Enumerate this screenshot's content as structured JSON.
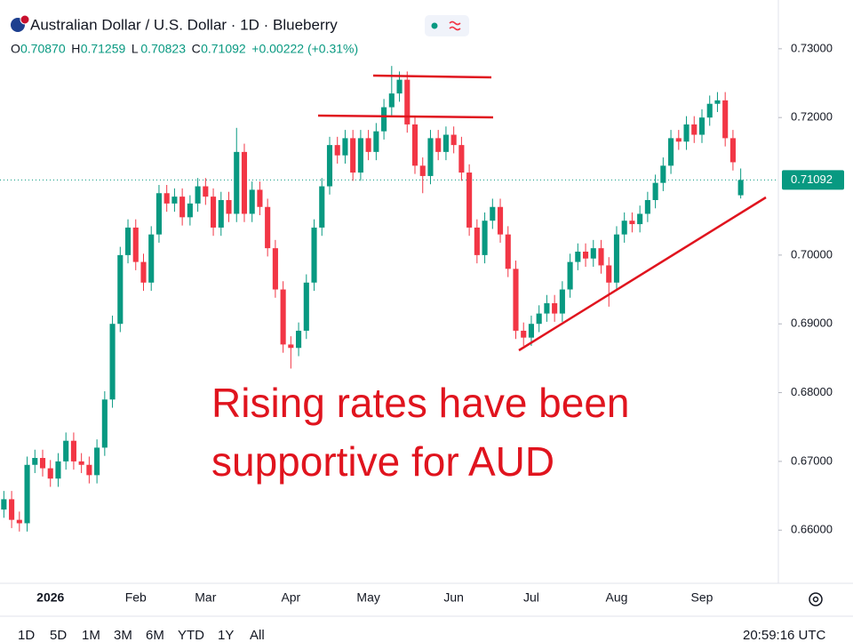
{
  "header": {
    "title": "Australian Dollar / U.S. Dollar · 1D · Blueberry",
    "ohlc": [
      {
        "label": "O",
        "value": "0.70870"
      },
      {
        "label": "H",
        "value": "0.71259"
      },
      {
        "label": "L",
        "value": "0.70823"
      },
      {
        "label": "C",
        "value": "0.71092"
      }
    ],
    "change": "+0.00222 (+0.31%)"
  },
  "chart_data": {
    "type": "candlestick",
    "annotation": [
      "Rising rates have been",
      "supportive for AUD"
    ],
    "up_color": "#089981",
    "down_color": "#f23645",
    "annotation_color": "#e0141e",
    "categories": [
      null,
      null,
      null,
      null,
      null,
      null,
      "2026",
      null,
      null,
      null,
      null,
      null,
      null,
      null,
      null,
      null,
      null,
      "Feb",
      null,
      null,
      null,
      null,
      null,
      null,
      null,
      null,
      "Mar",
      null,
      null,
      null,
      null,
      null,
      null,
      null,
      null,
      null,
      null,
      "Apr",
      null,
      null,
      null,
      null,
      null,
      null,
      null,
      null,
      null,
      "May",
      null,
      null,
      null,
      null,
      null,
      null,
      null,
      null,
      null,
      null,
      "Jun",
      null,
      null,
      null,
      null,
      null,
      null,
      null,
      null,
      null,
      "Jul",
      null,
      null,
      null,
      null,
      null,
      null,
      null,
      null,
      null,
      null,
      "Aug",
      null,
      null,
      null,
      null,
      null,
      null,
      null,
      null,
      null,
      null,
      "Sep",
      null,
      null,
      null,
      null,
      null
    ],
    "open": [
      0.663,
      0.6645,
      0.6615,
      0.661,
      0.6695,
      0.6705,
      0.669,
      0.6675,
      0.67,
      0.673,
      0.67,
      0.6695,
      0.668,
      0.672,
      0.679,
      0.69,
      0.7,
      0.704,
      0.699,
      0.696,
      0.703,
      0.709,
      0.7075,
      0.7085,
      0.7055,
      0.7075,
      0.71,
      0.7085,
      0.704,
      0.708,
      0.706,
      0.715,
      0.706,
      0.7095,
      0.707,
      0.701,
      0.695,
      0.687,
      0.6865,
      0.689,
      0.696,
      0.704,
      0.71,
      0.716,
      0.7145,
      0.717,
      0.712,
      0.717,
      0.715,
      0.718,
      0.7215,
      0.7235,
      0.7255,
      0.719,
      0.713,
      0.7115,
      0.717,
      0.715,
      0.7175,
      0.716,
      0.712,
      0.704,
      0.7,
      0.705,
      0.707,
      0.703,
      0.698,
      0.689,
      0.688,
      0.69,
      0.6915,
      0.693,
      0.6915,
      0.695,
      0.699,
      0.7005,
      0.6995,
      0.701,
      0.6985,
      0.696,
      0.703,
      0.705,
      0.7045,
      0.706,
      0.708,
      0.7105,
      0.713,
      0.717,
      0.7165,
      0.719,
      0.7175,
      0.72,
      0.722,
      0.7225,
      0.717,
      0.7087
    ],
    "high": [
      0.6657,
      0.6657,
      0.6627,
      0.6707,
      0.6717,
      0.6717,
      0.6702,
      0.6712,
      0.6742,
      0.6742,
      0.6712,
      0.6707,
      0.6732,
      0.6802,
      0.6912,
      0.7012,
      0.7052,
      0.7052,
      0.7002,
      0.7042,
      0.7102,
      0.7102,
      0.7097,
      0.7097,
      0.7087,
      0.7112,
      0.7112,
      0.7097,
      0.7092,
      0.7092,
      0.7185,
      0.7162,
      0.7107,
      0.7107,
      0.7082,
      0.7022,
      0.6962,
      0.6882,
      0.6902,
      0.6972,
      0.7052,
      0.7112,
      0.7172,
      0.7172,
      0.7182,
      0.7182,
      0.7182,
      0.7182,
      0.7192,
      0.7227,
      0.7275,
      0.7267,
      0.7267,
      0.7202,
      0.7142,
      0.7182,
      0.7182,
      0.7187,
      0.7187,
      0.7172,
      0.7132,
      0.7052,
      0.7062,
      0.7082,
      0.7082,
      0.7042,
      0.6992,
      0.6902,
      0.6912,
      0.6927,
      0.6942,
      0.6942,
      0.6962,
      0.7002,
      0.7017,
      0.7017,
      0.7022,
      0.7022,
      0.6997,
      0.7042,
      0.7062,
      0.7062,
      0.7072,
      0.7092,
      0.7117,
      0.7142,
      0.7182,
      0.7182,
      0.7202,
      0.7202,
      0.7212,
      0.7232,
      0.7237,
      0.7237,
      0.7182,
      0.71259
    ],
    "low": [
      0.6618,
      0.6603,
      0.6598,
      0.6598,
      0.6683,
      0.6678,
      0.6663,
      0.6663,
      0.6688,
      0.6688,
      0.6683,
      0.6668,
      0.6668,
      0.6708,
      0.6778,
      0.6888,
      0.6988,
      0.6978,
      0.6948,
      0.6948,
      0.7018,
      0.7063,
      0.7063,
      0.7043,
      0.7043,
      0.7063,
      0.7073,
      0.7028,
      0.7028,
      0.7048,
      0.7048,
      0.7048,
      0.7048,
      0.7058,
      0.6998,
      0.6938,
      0.6858,
      0.6835,
      0.6853,
      0.6878,
      0.6948,
      0.7028,
      0.7088,
      0.7133,
      0.7133,
      0.7108,
      0.7108,
      0.7138,
      0.7138,
      0.7168,
      0.7203,
      0.7223,
      0.7178,
      0.7118,
      0.709,
      0.7103,
      0.7138,
      0.7138,
      0.7148,
      0.7108,
      0.7028,
      0.6988,
      0.6988,
      0.7038,
      0.7018,
      0.6968,
      0.6878,
      0.6868,
      0.6868,
      0.6888,
      0.6903,
      0.6903,
      0.6903,
      0.6938,
      0.6978,
      0.6983,
      0.6983,
      0.6973,
      0.6925,
      0.6948,
      0.7018,
      0.7033,
      0.7033,
      0.7048,
      0.7068,
      0.7093,
      0.7118,
      0.7153,
      0.7153,
      0.7163,
      0.7163,
      0.7188,
      0.7208,
      0.7158,
      0.7123,
      0.70823
    ],
    "close": [
      0.6645,
      0.6615,
      0.661,
      0.6695,
      0.6705,
      0.669,
      0.6675,
      0.67,
      0.673,
      0.67,
      0.6695,
      0.668,
      0.672,
      0.679,
      0.69,
      0.7,
      0.704,
      0.699,
      0.696,
      0.703,
      0.709,
      0.7075,
      0.7085,
      0.7055,
      0.7075,
      0.71,
      0.7085,
      0.704,
      0.708,
      0.706,
      0.715,
      0.706,
      0.7095,
      0.707,
      0.701,
      0.695,
      0.687,
      0.6865,
      0.689,
      0.696,
      0.704,
      0.71,
      0.716,
      0.7145,
      0.717,
      0.712,
      0.717,
      0.715,
      0.718,
      0.7215,
      0.7235,
      0.7255,
      0.719,
      0.713,
      0.7115,
      0.717,
      0.715,
      0.7175,
      0.716,
      0.712,
      0.704,
      0.7,
      0.705,
      0.707,
      0.703,
      0.698,
      0.689,
      0.688,
      0.69,
      0.6915,
      0.693,
      0.6915,
      0.695,
      0.699,
      0.7005,
      0.6995,
      0.701,
      0.6985,
      0.696,
      0.703,
      0.705,
      0.7045,
      0.706,
      0.708,
      0.7105,
      0.713,
      0.717,
      0.7165,
      0.719,
      0.7175,
      0.72,
      0.722,
      0.7225,
      0.717,
      0.7135,
      0.71092
    ],
    "ylim": [
      0.6524,
      0.7358
    ],
    "yticks": [
      {
        "value": 0.73,
        "label": "0.73000"
      },
      {
        "value": 0.72,
        "label": "0.72000"
      },
      {
        "value": 0.7,
        "label": "0.70000"
      },
      {
        "value": 0.69,
        "label": "0.69000"
      },
      {
        "value": 0.68,
        "label": "0.68000"
      },
      {
        "value": 0.67,
        "label": "0.67000"
      },
      {
        "value": 0.66,
        "label": "0.66000"
      }
    ],
    "last_price": {
      "value": 0.71092,
      "label": "0.71092"
    },
    "grid": false
  },
  "footer": {
    "ranges": [
      "1D",
      "5D",
      "1M",
      "3M",
      "6M",
      "YTD",
      "1Y",
      "All"
    ],
    "time": "20:59:16 UTC"
  }
}
